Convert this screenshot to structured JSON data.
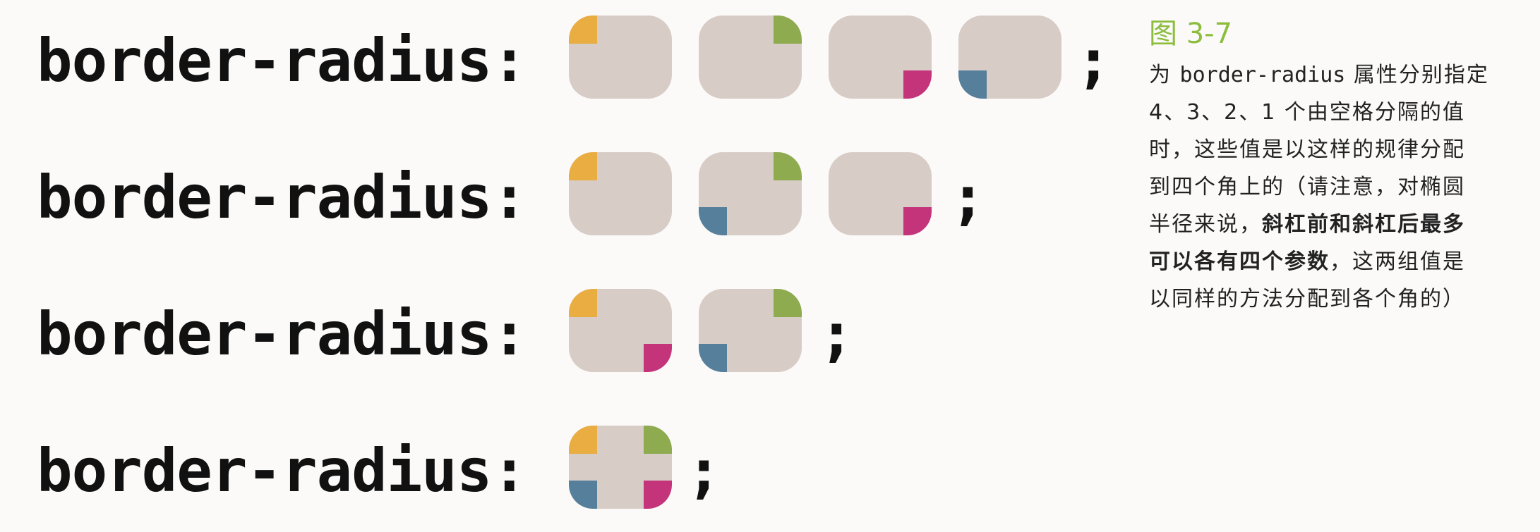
{
  "code_label": "border-radius:",
  "semicolon": ";",
  "colors": {
    "box_fill": "#d8ccc6",
    "orange": "#e9ad42",
    "green": "#8eab50",
    "magenta": "#c4347a",
    "blue": "#557f9b",
    "title_green": "#8cbd3c"
  },
  "rows": [
    {
      "value_count": 4,
      "boxes": [
        [
          "tl-orange"
        ],
        [
          "tr-green"
        ],
        [
          "br-magenta"
        ],
        [
          "bl-blue"
        ]
      ]
    },
    {
      "value_count": 3,
      "boxes": [
        [
          "tl-orange"
        ],
        [
          "tr-green",
          "bl-blue"
        ],
        [
          "br-magenta"
        ]
      ]
    },
    {
      "value_count": 2,
      "boxes": [
        [
          "tl-orange",
          "br-magenta"
        ],
        [
          "tr-green",
          "bl-blue"
        ]
      ]
    },
    {
      "value_count": 1,
      "boxes": [
        [
          "tl-orange",
          "tr-green",
          "br-magenta",
          "bl-blue"
        ]
      ]
    }
  ],
  "caption": {
    "title": "图 3-7",
    "l1_pre": "为 ",
    "l1_code": "border-radius",
    "l1_post": " 属性分别指定",
    "l2": "4、3、2、1 个由空格分隔的值",
    "l3": "时，这些值是以这样的规律分配",
    "l4": "到四个角上的（请注意，对椭圆",
    "l5_pre": "半径来说，",
    "l5_bold": "斜杠前和斜杠后最多",
    "l6_bold": "可以各有四个参数",
    "l6_post": "，这两组值是",
    "l7": "以同样的方法分配到各个角的）"
  }
}
